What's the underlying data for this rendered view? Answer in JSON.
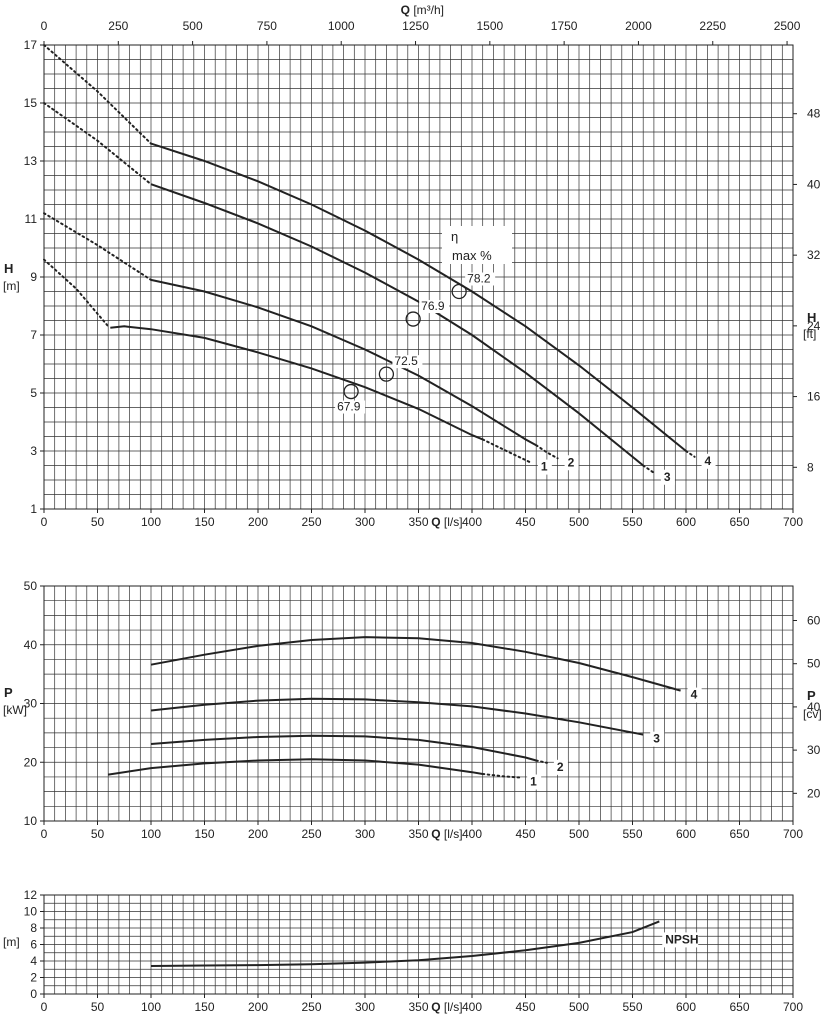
{
  "chart_data": [
    {
      "type": "line",
      "name_id": "head",
      "xlabel": "Q [l/s]",
      "x_unit_label": "Q",
      "x_unit": "[l/s]",
      "top_axis_label": "Q",
      "top_axis_unit": "[m³/h]",
      "ylabel": "H",
      "yunit": "[m]",
      "right_label": "H",
      "right_unit": "[ft]",
      "xlim": [
        0,
        700
      ],
      "ylim": [
        1,
        17
      ],
      "xticks": [
        "0",
        "50",
        "100",
        "150",
        "200",
        "250",
        "300",
        "350",
        "400",
        "450",
        "500",
        "550",
        "600",
        "650",
        "700"
      ],
      "yticks": [
        "1",
        "3",
        "5",
        "7",
        "9",
        "11",
        "13",
        "15",
        "17"
      ],
      "top_ticks": [
        "0",
        "250",
        "500",
        "750",
        "1000",
        "1250",
        "1500",
        "1750",
        "2000",
        "2250",
        "2500"
      ],
      "right_ticks": [
        "8",
        "16",
        "24",
        "32",
        "40",
        "48"
      ],
      "eta_label_1": "η",
      "eta_label_2": "max %",
      "series": [
        {
          "name": "1",
          "solid": [
            [
              62,
              7.25
            ],
            [
              75,
              7.3
            ],
            [
              100,
              7.2
            ],
            [
              150,
              6.9
            ],
            [
              200,
              6.4
            ],
            [
              250,
              5.85
            ],
            [
              300,
              5.2
            ],
            [
              350,
              4.45
            ],
            [
              400,
              3.55
            ],
            [
              410,
              3.4
            ]
          ],
          "dotted_start": [
            [
              0,
              9.6
            ],
            [
              30,
              8.6
            ],
            [
              60,
              7.3
            ]
          ],
          "dotted_end": [
            [
              410,
              3.4
            ],
            [
              435,
              2.95
            ],
            [
              455,
              2.6
            ]
          ],
          "bep": [
            287,
            5.05
          ],
          "eff": "67.9"
        },
        {
          "name": "2",
          "solid": [
            [
              100,
              8.9
            ],
            [
              150,
              8.5
            ],
            [
              200,
              7.95
            ],
            [
              250,
              7.3
            ],
            [
              300,
              6.5
            ],
            [
              350,
              5.6
            ],
            [
              400,
              4.55
            ],
            [
              450,
              3.4
            ],
            [
              460,
              3.2
            ]
          ],
          "dotted_start": [
            [
              0,
              11.2
            ],
            [
              50,
              10.1
            ],
            [
              100,
              8.9
            ]
          ],
          "dotted_end": [
            [
              460,
              3.2
            ],
            [
              470,
              2.95
            ],
            [
              480,
              2.75
            ]
          ],
          "bep": [
            320,
            5.65
          ],
          "eff": "72.5"
        },
        {
          "name": "3",
          "solid": [
            [
              100,
              12.2
            ],
            [
              150,
              11.55
            ],
            [
              200,
              10.85
            ],
            [
              250,
              10.05
            ],
            [
              300,
              9.15
            ],
            [
              350,
              8.15
            ],
            [
              400,
              7.0
            ],
            [
              450,
              5.7
            ],
            [
              500,
              4.3
            ],
            [
              560,
              2.5
            ]
          ],
          "dotted_start": [
            [
              0,
              15.0
            ],
            [
              50,
              13.7
            ],
            [
              100,
              12.2
            ]
          ],
          "dotted_end": [
            [
              560,
              2.5
            ],
            [
              570,
              2.25
            ]
          ],
          "bep": [
            345,
            7.55
          ],
          "eff": "76.9"
        },
        {
          "name": "4",
          "solid": [
            [
              100,
              13.6
            ],
            [
              150,
              13.0
            ],
            [
              200,
              12.3
            ],
            [
              250,
              11.5
            ],
            [
              300,
              10.6
            ],
            [
              350,
              9.6
            ],
            [
              400,
              8.5
            ],
            [
              450,
              7.3
            ],
            [
              500,
              5.95
            ],
            [
              550,
              4.5
            ],
            [
              600,
              3.0
            ]
          ],
          "dotted_start": [
            [
              0,
              17.0
            ],
            [
              50,
              15.4
            ],
            [
              100,
              13.6
            ]
          ],
          "dotted_end": [
            [
              600,
              3.0
            ],
            [
              608,
              2.8
            ]
          ],
          "bep": [
            388,
            8.5
          ],
          "eff": "78.2"
        }
      ]
    },
    {
      "type": "line",
      "name_id": "power",
      "xlabel": "Q [l/s]",
      "x_unit_label": "Q",
      "x_unit": "[l/s]",
      "ylabel": "P",
      "yunit": "[kW]",
      "right_label": "P",
      "right_unit": "[cv]",
      "xlim": [
        0,
        700
      ],
      "ylim": [
        10,
        50
      ],
      "xticks": [
        "0",
        "50",
        "100",
        "150",
        "200",
        "250",
        "300",
        "350",
        "400",
        "450",
        "500",
        "550",
        "600",
        "650",
        "700"
      ],
      "yticks": [
        "10",
        "20",
        "30",
        "40",
        "50"
      ],
      "right_ticks": [
        "20",
        "30",
        "40",
        "50",
        "60"
      ],
      "series": [
        {
          "name": "1",
          "solid": [
            [
              60,
              17.9
            ],
            [
              100,
              19.0
            ],
            [
              150,
              19.8
            ],
            [
              200,
              20.3
            ],
            [
              250,
              20.5
            ],
            [
              300,
              20.3
            ],
            [
              350,
              19.6
            ],
            [
              400,
              18.3
            ],
            [
              410,
              18.0
            ]
          ],
          "dotted_end": [
            [
              410,
              18.0
            ],
            [
              430,
              17.6
            ],
            [
              445,
              17.4
            ]
          ]
        },
        {
          "name": "2",
          "solid": [
            [
              100,
              23.1
            ],
            [
              150,
              23.8
            ],
            [
              200,
              24.3
            ],
            [
              250,
              24.5
            ],
            [
              300,
              24.4
            ],
            [
              350,
              23.8
            ],
            [
              400,
              22.6
            ],
            [
              450,
              20.8
            ],
            [
              460,
              20.3
            ]
          ],
          "dotted_end": [
            [
              460,
              20.3
            ],
            [
              470,
              19.9
            ]
          ]
        },
        {
          "name": "3",
          "solid": [
            [
              100,
              28.8
            ],
            [
              150,
              29.8
            ],
            [
              200,
              30.5
            ],
            [
              250,
              30.8
            ],
            [
              300,
              30.7
            ],
            [
              350,
              30.2
            ],
            [
              400,
              29.5
            ],
            [
              450,
              28.3
            ],
            [
              500,
              26.8
            ],
            [
              560,
              24.7
            ]
          ]
        },
        {
          "name": "4",
          "solid": [
            [
              100,
              36.6
            ],
            [
              150,
              38.3
            ],
            [
              200,
              39.8
            ],
            [
              250,
              40.8
            ],
            [
              300,
              41.3
            ],
            [
              350,
              41.1
            ],
            [
              400,
              40.3
            ],
            [
              450,
              38.8
            ],
            [
              500,
              36.9
            ],
            [
              550,
              34.5
            ],
            [
              595,
              32.2
            ]
          ]
        }
      ]
    },
    {
      "type": "line",
      "name_id": "npsh",
      "xlabel": "Q [l/s]",
      "x_unit_label": "Q",
      "x_unit": "[l/s]",
      "ylabel": "",
      "yunit": "[m]",
      "xlim": [
        0,
        700
      ],
      "ylim": [
        0,
        12
      ],
      "xticks": [
        "0",
        "50",
        "100",
        "150",
        "200",
        "250",
        "300",
        "350",
        "400",
        "450",
        "500",
        "550",
        "600",
        "650",
        "700"
      ],
      "yticks": [
        "0",
        "2",
        "4",
        "6",
        "8",
        "10",
        "12"
      ],
      "series": [
        {
          "name": "NPSH",
          "solid": [
            [
              100,
              3.4
            ],
            [
              150,
              3.45
            ],
            [
              200,
              3.5
            ],
            [
              250,
              3.6
            ],
            [
              300,
              3.8
            ],
            [
              350,
              4.1
            ],
            [
              400,
              4.6
            ],
            [
              450,
              5.3
            ],
            [
              500,
              6.2
            ],
            [
              550,
              7.5
            ],
            [
              575,
              8.8
            ]
          ]
        }
      ]
    }
  ]
}
